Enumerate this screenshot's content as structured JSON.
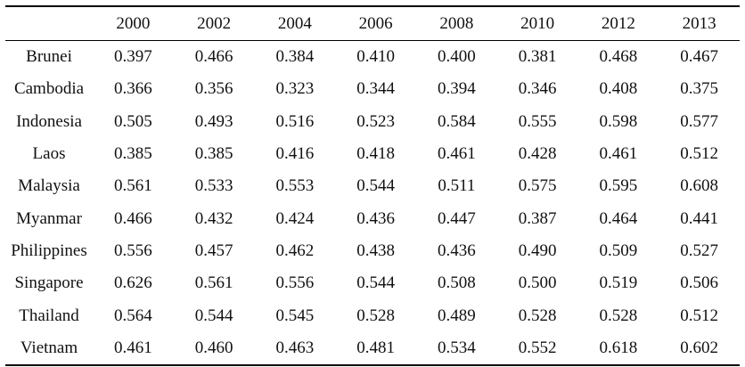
{
  "table": {
    "corner": "",
    "years": [
      "2000",
      "2002",
      "2004",
      "2006",
      "2008",
      "2010",
      "2012",
      "2013"
    ],
    "rows": [
      {
        "country": "Brunei",
        "values": [
          "0.397",
          "0.466",
          "0.384",
          "0.410",
          "0.400",
          "0.381",
          "0.468",
          "0.467"
        ]
      },
      {
        "country": "Cambodia",
        "values": [
          "0.366",
          "0.356",
          "0.323",
          "0.344",
          "0.394",
          "0.346",
          "0.408",
          "0.375"
        ]
      },
      {
        "country": "Indonesia",
        "values": [
          "0.505",
          "0.493",
          "0.516",
          "0.523",
          "0.584",
          "0.555",
          "0.598",
          "0.577"
        ]
      },
      {
        "country": "Laos",
        "values": [
          "0.385",
          "0.385",
          "0.416",
          "0.418",
          "0.461",
          "0.428",
          "0.461",
          "0.512"
        ]
      },
      {
        "country": "Malaysia",
        "values": [
          "0.561",
          "0.533",
          "0.553",
          "0.544",
          "0.511",
          "0.575",
          "0.595",
          "0.608"
        ]
      },
      {
        "country": "Myanmar",
        "values": [
          "0.466",
          "0.432",
          "0.424",
          "0.436",
          "0.447",
          "0.387",
          "0.464",
          "0.441"
        ]
      },
      {
        "country": "Philippines",
        "values": [
          "0.556",
          "0.457",
          "0.462",
          "0.438",
          "0.436",
          "0.490",
          "0.509",
          "0.527"
        ]
      },
      {
        "country": "Singapore",
        "values": [
          "0.626",
          "0.561",
          "0.556",
          "0.544",
          "0.508",
          "0.500",
          "0.519",
          "0.506"
        ]
      },
      {
        "country": "Thailand",
        "values": [
          "0.564",
          "0.544",
          "0.545",
          "0.528",
          "0.489",
          "0.528",
          "0.528",
          "0.512"
        ]
      },
      {
        "country": "Vietnam",
        "values": [
          "0.461",
          "0.460",
          "0.463",
          "0.481",
          "0.534",
          "0.552",
          "0.618",
          "0.602"
        ]
      }
    ]
  }
}
